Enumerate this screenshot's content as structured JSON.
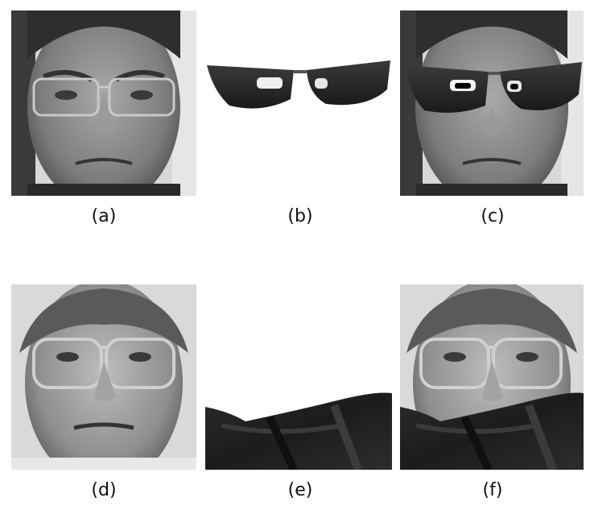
{
  "figure": {
    "rows": [
      {
        "panels": [
          {
            "label": "(a)",
            "content": "face-with-eyeglasses-original"
          },
          {
            "label": "(b)",
            "content": "sunglasses-occlusion-mask"
          },
          {
            "label": "(c)",
            "content": "face-with-sunglasses-occlusion"
          }
        ]
      },
      {
        "panels": [
          {
            "label": "(d)",
            "content": "face-with-eyeglasses-original"
          },
          {
            "label": "(e)",
            "content": "scarf-occlusion-mask"
          },
          {
            "label": "(f)",
            "content": "face-with-scarf-occlusion"
          }
        ]
      }
    ]
  }
}
